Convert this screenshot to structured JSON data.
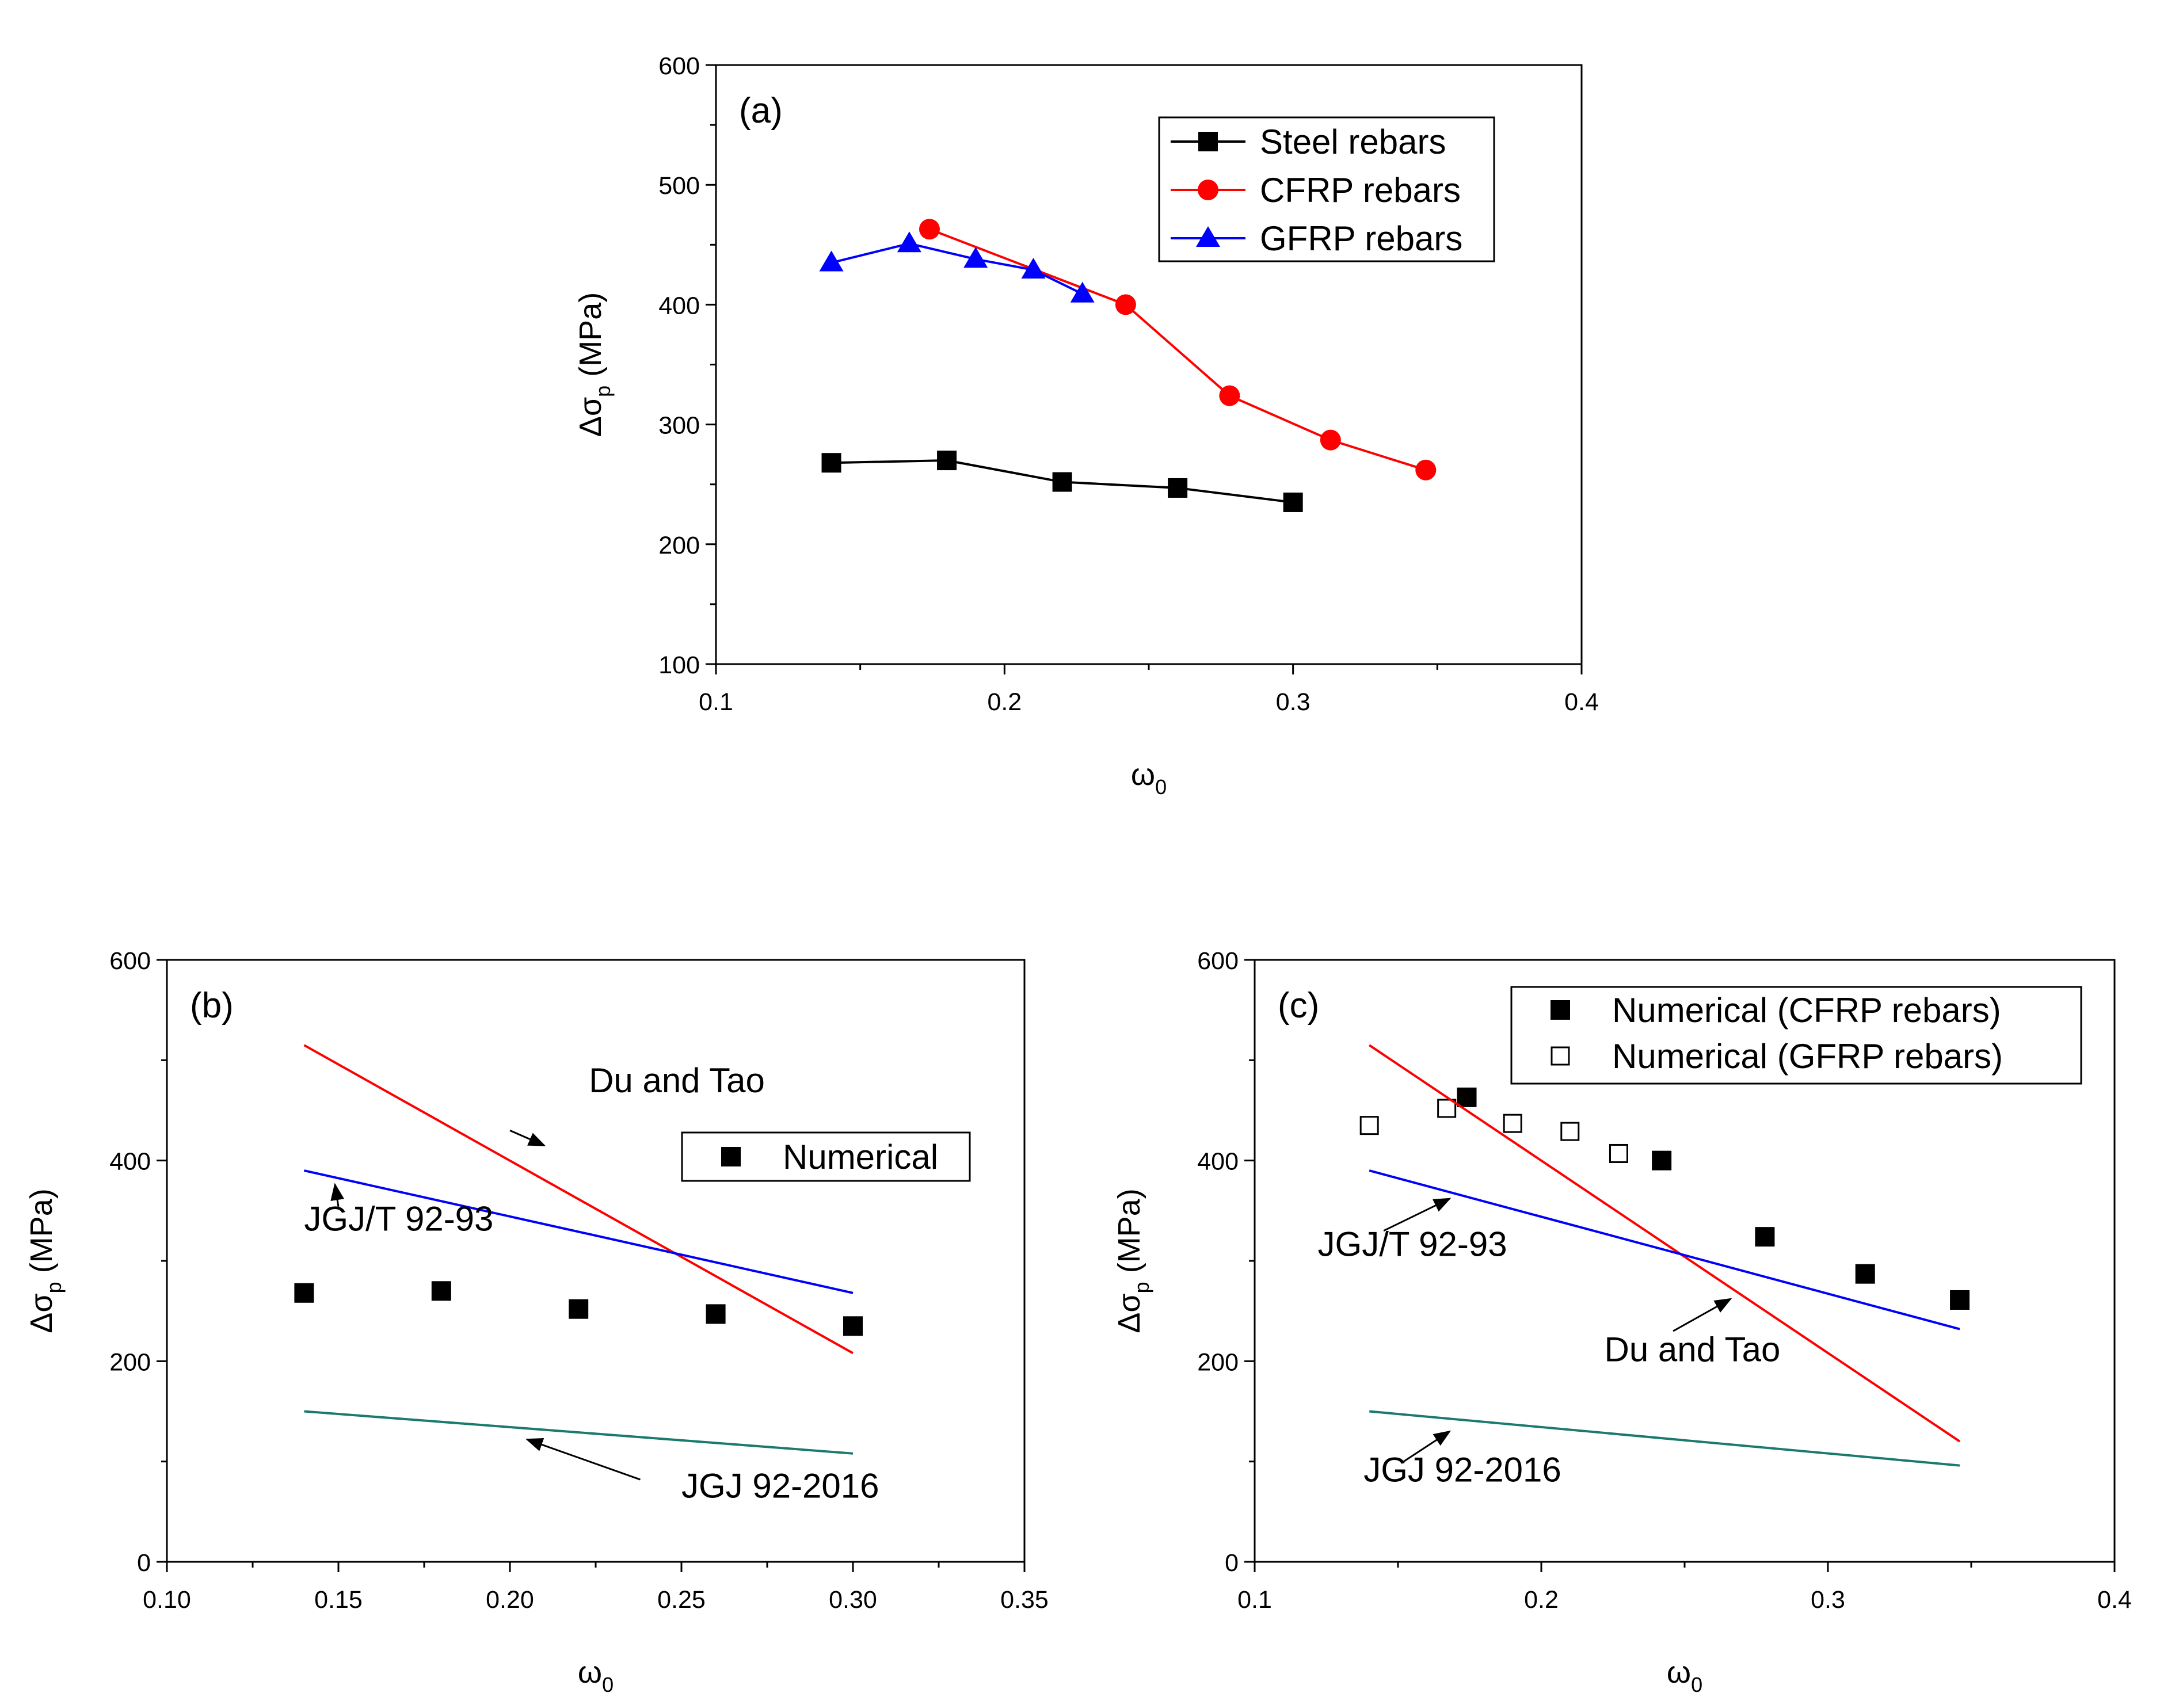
{
  "chart_data": [
    {
      "type": "line",
      "panel_label": "(a)",
      "xlabel_base": "ω",
      "xlabel_sub": "0",
      "ylabel_pre": "Δσ",
      "ylabel_sub": "p",
      "ylabel_post": " (MPa)",
      "xlim": [
        0.1,
        0.4
      ],
      "ylim": [
        100,
        600
      ],
      "x_ticks": [
        0.1,
        0.2,
        0.3,
        0.4
      ],
      "x_tick_labels": [
        "0.1",
        "0.2",
        "0.3",
        "0.4"
      ],
      "y_ticks": [
        100,
        200,
        300,
        400,
        500,
        600
      ],
      "y_tick_labels": [
        "100",
        "200",
        "300",
        "400",
        "500",
        "600"
      ],
      "grid": false,
      "legend_position": "top-right",
      "series": [
        {
          "name": "Steel rebars",
          "color": "#000000",
          "marker": "square",
          "x": [
            0.14,
            0.18,
            0.22,
            0.26,
            0.3
          ],
          "y": [
            268,
            270,
            252,
            247,
            235
          ]
        },
        {
          "name": "CFRP rebars",
          "color": "#ff0000",
          "marker": "circle",
          "x": [
            0.174,
            0.242,
            0.278,
            0.313,
            0.346
          ],
          "y": [
            463,
            400,
            324,
            287,
            262
          ]
        },
        {
          "name": "GFRP rebars",
          "color": "#0000ff",
          "marker": "triangle",
          "x": [
            0.14,
            0.167,
            0.19,
            0.21,
            0.227
          ],
          "y": [
            435,
            451,
            438,
            429,
            409
          ]
        }
      ]
    },
    {
      "type": "line",
      "panel_label": "(b)",
      "xlabel_base": "ω",
      "xlabel_sub": "0",
      "ylabel_pre": "Δσ",
      "ylabel_sub": "p",
      "ylabel_post": " (MPa)",
      "xlim": [
        0.1,
        0.35
      ],
      "ylim": [
        0,
        600
      ],
      "x_ticks": [
        0.1,
        0.15,
        0.2,
        0.25,
        0.3,
        0.35
      ],
      "x_tick_labels": [
        "0.10",
        "0.15",
        "0.20",
        "0.25",
        "0.30",
        "0.35"
      ],
      "y_ticks": [
        0,
        200,
        400,
        600
      ],
      "y_tick_labels": [
        "0",
        "200",
        "400",
        "600"
      ],
      "grid": false,
      "legend_position": "right",
      "series": [
        {
          "name": "Numerical",
          "color": "#000000",
          "marker": "square",
          "line": false,
          "x": [
            0.14,
            0.18,
            0.22,
            0.26,
            0.3
          ],
          "y": [
            268,
            270,
            252,
            247,
            235
          ]
        },
        {
          "name": "Du and Tao",
          "color": "#ff0000",
          "marker": "none",
          "x": [
            0.14,
            0.3
          ],
          "y": [
            515,
            208
          ]
        },
        {
          "name": "JGJ/T 92-93",
          "color": "#0000ff",
          "marker": "none",
          "x": [
            0.14,
            0.3
          ],
          "y": [
            390,
            268
          ]
        },
        {
          "name": "JGJ 92-2016",
          "color": "#1a7a6e",
          "marker": "none",
          "x": [
            0.14,
            0.3
          ],
          "y": [
            150,
            108
          ]
        }
      ],
      "annotations": [
        {
          "text": "Du and Tao",
          "x": 0.223,
          "y": 468,
          "ax": 0.2,
          "ay": 430,
          "tx": 0.21,
          "ty": 415
        },
        {
          "text": "JGJ/T 92-93",
          "x": 0.14,
          "y": 330,
          "ax": 0.15,
          "ay": 354,
          "tx": 0.149,
          "ty": 376
        },
        {
          "text": "JGJ 92-2016",
          "x": 0.25,
          "y": 64,
          "ax": 0.238,
          "ay": 82,
          "tx": 0.205,
          "ty": 122
        }
      ]
    },
    {
      "type": "line",
      "panel_label": "(c)",
      "xlabel_base": "ω",
      "xlabel_sub": "0",
      "ylabel_pre": "Δσ",
      "ylabel_sub": "p",
      "ylabel_post": " (MPa)",
      "xlim": [
        0.1,
        0.4
      ],
      "ylim": [
        0,
        600
      ],
      "x_ticks": [
        0.1,
        0.2,
        0.3,
        0.4
      ],
      "x_tick_labels": [
        "0.1",
        "0.2",
        "0.3",
        "0.4"
      ],
      "y_ticks": [
        0,
        200,
        400,
        600
      ],
      "y_tick_labels": [
        "0",
        "200",
        "400",
        "600"
      ],
      "grid": false,
      "legend_position": "top-right",
      "series": [
        {
          "name": "Numerical (CFRP rebars)",
          "color": "#000000",
          "marker": "square",
          "line": false,
          "x": [
            0.174,
            0.242,
            0.278,
            0.313,
            0.346
          ],
          "y": [
            463,
            400,
            324,
            287,
            261
          ]
        },
        {
          "name": "Numerical (GFRP rebars)",
          "color": "#000000",
          "marker": "open-square",
          "line": false,
          "x": [
            0.14,
            0.167,
            0.19,
            0.21,
            0.227
          ],
          "y": [
            435,
            452,
            437,
            429,
            407
          ]
        },
        {
          "name": "Du and Tao",
          "color": "#ff0000",
          "marker": "none",
          "x": [
            0.14,
            0.346
          ],
          "y": [
            515,
            120
          ]
        },
        {
          "name": "JGJ/T 92-93",
          "color": "#0000ff",
          "marker": "none",
          "x": [
            0.14,
            0.346
          ],
          "y": [
            390,
            232
          ]
        },
        {
          "name": "JGJ 92-2016",
          "color": "#1a7a6e",
          "marker": "none",
          "x": [
            0.14,
            0.346
          ],
          "y": [
            150,
            96
          ]
        }
      ],
      "annotations": [
        {
          "text": "JGJ/T 92-93",
          "x": 0.122,
          "y": 305,
          "ax": 0.145,
          "ay": 330,
          "tx": 0.168,
          "ty": 362
        },
        {
          "text": "Du and Tao",
          "x": 0.222,
          "y": 200,
          "ax": 0.246,
          "ay": 230,
          "tx": 0.266,
          "ty": 262
        },
        {
          "text": "JGJ 92-2016",
          "x": 0.138,
          "y": 80,
          "ax": 0.152,
          "ay": 100,
          "tx": 0.168,
          "ty": 130
        }
      ]
    }
  ]
}
